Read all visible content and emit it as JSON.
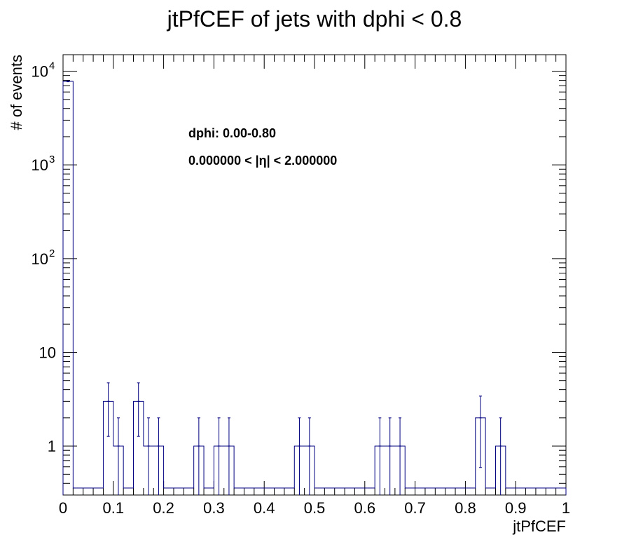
{
  "chart_data": {
    "type": "histogram",
    "title": "jtPfCEF of jets with dphi < 0.8",
    "xlabel": "jtPfCEF",
    "ylabel": "# of events",
    "xlim": [
      0,
      1
    ],
    "ylim": [
      0.3,
      15000
    ],
    "yscale": "log",
    "grid": false,
    "bin_width": 0.02,
    "bins": [
      {
        "x": 0.01,
        "y": 7800,
        "err": 88
      },
      {
        "x": 0.09,
        "y": 3,
        "err": 1.73
      },
      {
        "x": 0.11,
        "y": 1,
        "err": 1
      },
      {
        "x": 0.15,
        "y": 3,
        "err": 1.73
      },
      {
        "x": 0.17,
        "y": 1,
        "err": 1
      },
      {
        "x": 0.19,
        "y": 1,
        "err": 1
      },
      {
        "x": 0.27,
        "y": 1,
        "err": 1
      },
      {
        "x": 0.31,
        "y": 1,
        "err": 1
      },
      {
        "x": 0.33,
        "y": 1,
        "err": 1
      },
      {
        "x": 0.47,
        "y": 1,
        "err": 1
      },
      {
        "x": 0.49,
        "y": 1,
        "err": 1
      },
      {
        "x": 0.63,
        "y": 1,
        "err": 1
      },
      {
        "x": 0.65,
        "y": 1,
        "err": 1
      },
      {
        "x": 0.67,
        "y": 1,
        "err": 1
      },
      {
        "x": 0.83,
        "y": 2,
        "err": 1.41
      },
      {
        "x": 0.87,
        "y": 1,
        "err": 1
      }
    ],
    "x_ticks": [
      {
        "value": 0,
        "label": "0"
      },
      {
        "value": 0.1,
        "label": "0.1"
      },
      {
        "value": 0.2,
        "label": "0.2"
      },
      {
        "value": 0.3,
        "label": "0.3"
      },
      {
        "value": 0.4,
        "label": "0.4"
      },
      {
        "value": 0.5,
        "label": "0.5"
      },
      {
        "value": 0.6,
        "label": "0.6"
      },
      {
        "value": 0.7,
        "label": "0.7"
      },
      {
        "value": 0.8,
        "label": "0.8"
      },
      {
        "value": 0.9,
        "label": "0.9"
      },
      {
        "value": 1,
        "label": "1"
      }
    ],
    "y_ticks": [
      {
        "value": 1,
        "label": "1",
        "sup": ""
      },
      {
        "value": 10,
        "label": "10",
        "sup": ""
      },
      {
        "value": 100,
        "label": "10",
        "sup": "2"
      },
      {
        "value": 1000,
        "label": "10",
        "sup": "3"
      },
      {
        "value": 10000,
        "label": "10",
        "sup": "4"
      }
    ],
    "annotations": [
      "dphi: 0.00-0.80",
      "0.000000 < |η| < 2.000000"
    ],
    "colors": {
      "histogram": "#000080",
      "frame": "#000000"
    }
  }
}
